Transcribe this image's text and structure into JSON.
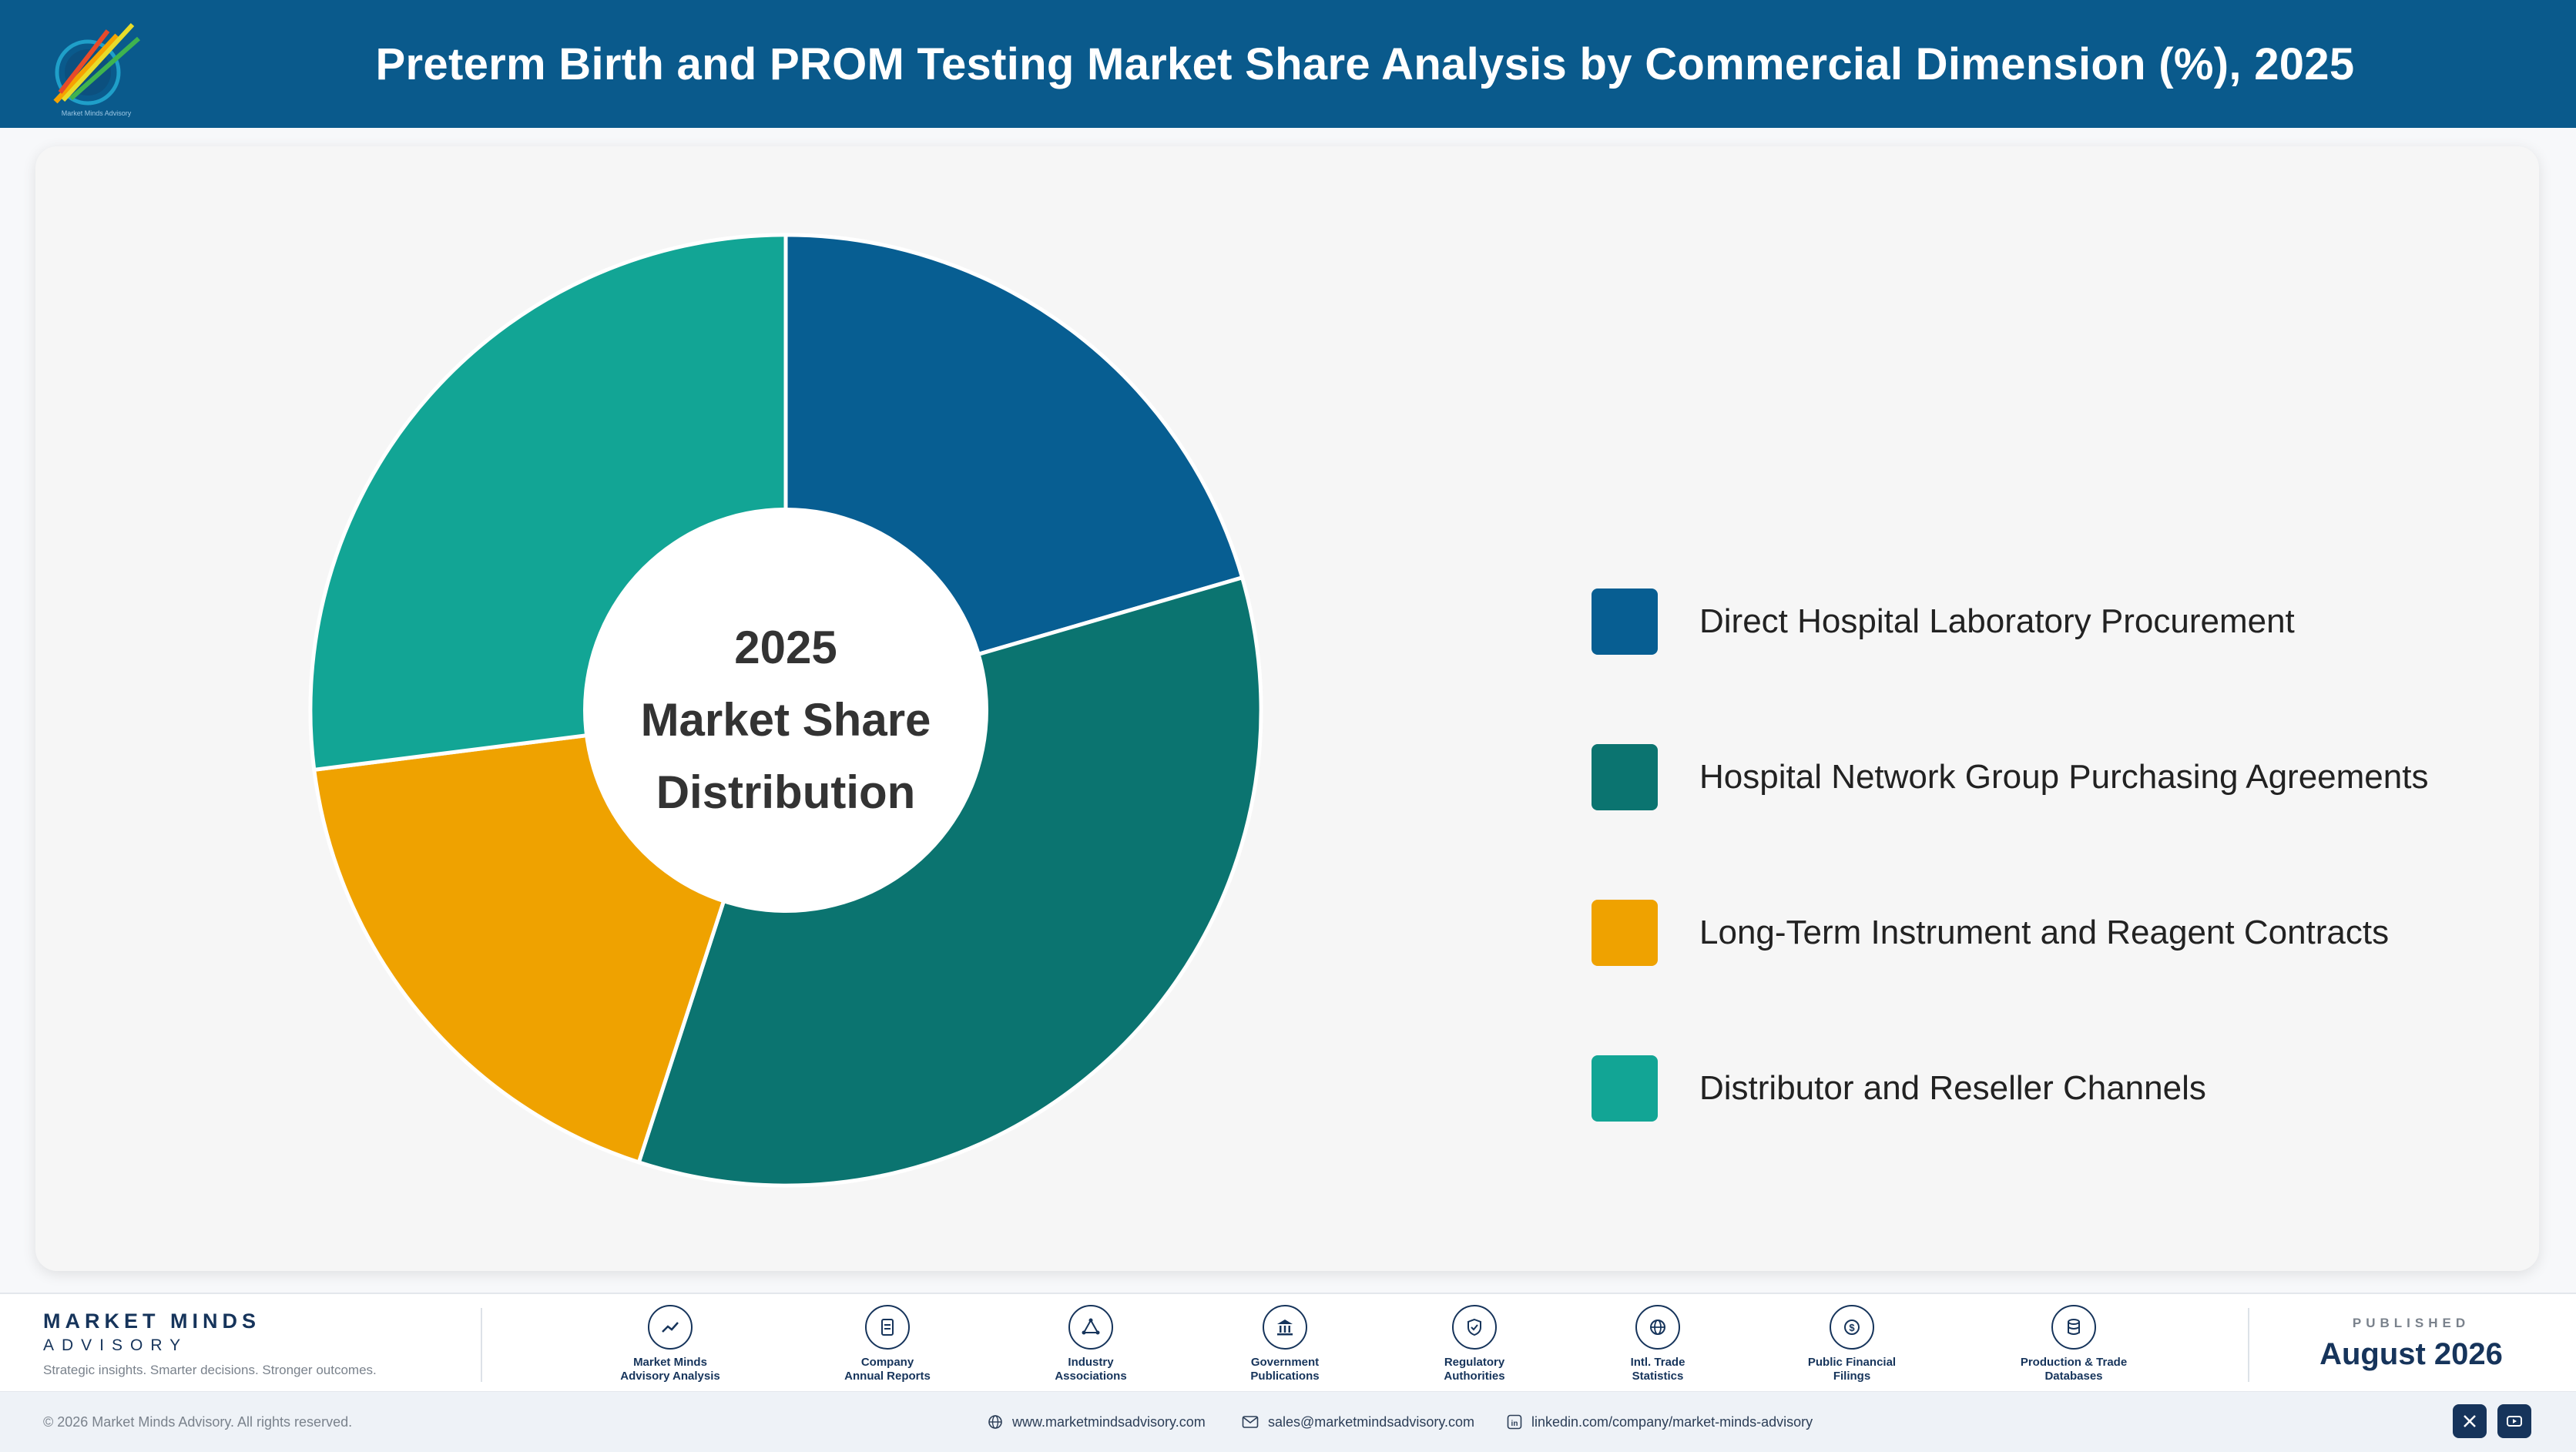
{
  "header": {
    "title": "Preterm Birth and PROM Testing Market Share Analysis by Commercial Dimension (%), 2025",
    "logo_icon": "market-minds-logo"
  },
  "chart_data": {
    "type": "pie",
    "donut": true,
    "center_text": [
      "2025",
      "Market Share",
      "Distribution"
    ],
    "legend_position": "right",
    "categories": [
      "Direct Hospital Laboratory Procurement",
      "Hospital Network Group Purchasing Agreements",
      "Long-Term Instrument and Reagent Contracts",
      "Distributor and Reseller Channels"
    ],
    "values": [
      20.5,
      34.5,
      18.0,
      27.0
    ],
    "colors": [
      "#075e92",
      "#0b7470",
      "#efa200",
      "#12a595"
    ]
  },
  "footer": {
    "brand_name": "MARKET MINDS",
    "brand_sub": "ADVISORY",
    "tagline": "Strategic insights. Smarter decisions. Stronger outcomes.",
    "sources": [
      {
        "label": "Market Minds\nAdvisory Analysis",
        "icon": "trend-chart-icon"
      },
      {
        "label": "Company\nAnnual Reports",
        "icon": "document-icon"
      },
      {
        "label": "Industry\nAssociations",
        "icon": "network-icon"
      },
      {
        "label": "Government\nPublications",
        "icon": "government-building-icon"
      },
      {
        "label": "Regulatory\nAuthorities",
        "icon": "shield-check-icon"
      },
      {
        "label": "Intl. Trade\nStatistics",
        "icon": "globe-icon"
      },
      {
        "label": "Public Financial\nFilings",
        "icon": "dollar-coin-icon"
      },
      {
        "label": "Production & Trade\nDatabases",
        "icon": "database-icon"
      }
    ],
    "published_label": "PUBLISHED",
    "published_date": "August 2026",
    "copyright": "© 2026 Market Minds Advisory. All rights reserved.",
    "website": "www.marketmindsadvisory.com",
    "email": "sales@marketmindsadvisory.com",
    "linkedin": "linkedin.com/company/market-minds-advisory",
    "social": [
      "x-icon",
      "youtube-icon"
    ]
  }
}
